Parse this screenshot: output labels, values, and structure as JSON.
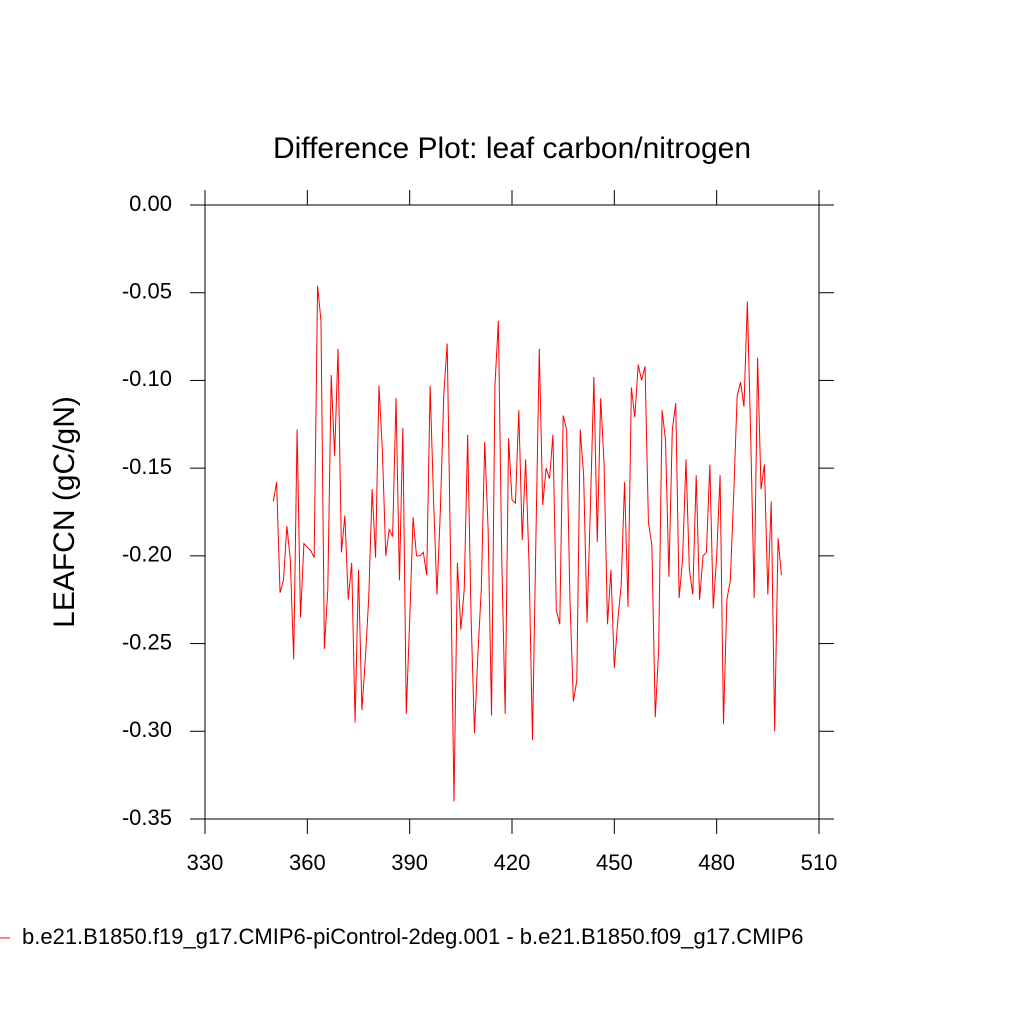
{
  "chart_data": {
    "type": "line",
    "title": "Difference Plot: leaf carbon/nitrogen",
    "y_label": "LEAFCN  (gC/gN)",
    "x": [
      350,
      351,
      352,
      353,
      354,
      355,
      356,
      357,
      358,
      359,
      360,
      361,
      362,
      363,
      364,
      365,
      366,
      367,
      368,
      369,
      370,
      371,
      372,
      373,
      374,
      375,
      376,
      377,
      378,
      379,
      380,
      381,
      382,
      383,
      384,
      385,
      386,
      387,
      388,
      389,
      390,
      391,
      392,
      393,
      394,
      395,
      396,
      397,
      398,
      399,
      400,
      401,
      402,
      403,
      404,
      405,
      406,
      407,
      408,
      409,
      410,
      411,
      412,
      413,
      414,
      415,
      416,
      417,
      418,
      419,
      420,
      421,
      422,
      423,
      424,
      425,
      426,
      427,
      428,
      429,
      430,
      431,
      432,
      433,
      434,
      435,
      436,
      437,
      438,
      439,
      440,
      441,
      442,
      443,
      444,
      445,
      446,
      447,
      448,
      449,
      450,
      451,
      452,
      453,
      454,
      455,
      456,
      457,
      458,
      459,
      460,
      461,
      462,
      463,
      464,
      465,
      466,
      467,
      468,
      469,
      470,
      471,
      472,
      473,
      474,
      475,
      476,
      477,
      478,
      479,
      480,
      481,
      482,
      483,
      484,
      485,
      486,
      487,
      488,
      489,
      490,
      491,
      492,
      493,
      494,
      495,
      496,
      497,
      498,
      499
    ],
    "series": [
      {
        "name": "b.e21.B1850.f19_g17.CMIP6-piControl-2deg.001 - b.e21.B1850.f09_g17.CMIP6",
        "color": "#ff0000",
        "values": [
          -0.169,
          -0.158,
          -0.221,
          -0.214,
          -0.183,
          -0.202,
          -0.259,
          -0.128,
          -0.235,
          -0.193,
          -0.195,
          -0.197,
          -0.201,
          -0.046,
          -0.066,
          -0.253,
          -0.219,
          -0.097,
          -0.143,
          -0.082,
          -0.198,
          -0.177,
          -0.225,
          -0.204,
          -0.295,
          -0.208,
          -0.288,
          -0.259,
          -0.224,
          -0.162,
          -0.201,
          -0.103,
          -0.14,
          -0.2,
          -0.185,
          -0.189,
          -0.11,
          -0.214,
          -0.127,
          -0.29,
          -0.237,
          -0.178,
          -0.2,
          -0.2,
          -0.198,
          -0.211,
          -0.103,
          -0.168,
          -0.222,
          -0.174,
          -0.108,
          -0.079,
          -0.202,
          -0.34,
          -0.204,
          -0.242,
          -0.219,
          -0.131,
          -0.235,
          -0.301,
          -0.256,
          -0.219,
          -0.135,
          -0.185,
          -0.291,
          -0.103,
          -0.066,
          -0.202,
          -0.29,
          -0.133,
          -0.168,
          -0.17,
          -0.117,
          -0.191,
          -0.145,
          -0.205,
          -0.305,
          -0.191,
          -0.082,
          -0.171,
          -0.15,
          -0.156,
          -0.131,
          -0.231,
          -0.239,
          -0.12,
          -0.128,
          -0.226,
          -0.283,
          -0.271,
          -0.128,
          -0.154,
          -0.238,
          -0.171,
          -0.098,
          -0.192,
          -0.11,
          -0.148,
          -0.239,
          -0.208,
          -0.264,
          -0.237,
          -0.217,
          -0.158,
          -0.229,
          -0.104,
          -0.121,
          -0.091,
          -0.1,
          -0.092,
          -0.181,
          -0.194,
          -0.292,
          -0.253,
          -0.117,
          -0.134,
          -0.212,
          -0.128,
          -0.113,
          -0.224,
          -0.202,
          -0.145,
          -0.208,
          -0.222,
          -0.154,
          -0.225,
          -0.2,
          -0.198,
          -0.148,
          -0.23,
          -0.2,
          -0.154,
          -0.296,
          -0.225,
          -0.214,
          -0.165,
          -0.109,
          -0.101,
          -0.115,
          -0.055,
          -0.134,
          -0.224,
          -0.087,
          -0.162,
          -0.148,
          -0.222,
          -0.169,
          -0.3,
          -0.19,
          -0.211
        ]
      }
    ],
    "xlim": [
      330,
      510
    ],
    "xticks": [
      330,
      360,
      390,
      420,
      450,
      480,
      510
    ],
    "ylim": [
      -0.35,
      0
    ],
    "yticks": [
      {
        "value": 0,
        "label": "0.00"
      },
      {
        "value": -0.05,
        "label": "-0.05"
      },
      {
        "value": -0.1,
        "label": "-0.10"
      },
      {
        "value": -0.15,
        "label": "-0.15"
      },
      {
        "value": -0.2,
        "label": "-0.20"
      },
      {
        "value": -0.25,
        "label": "-0.25"
      },
      {
        "value": -0.3,
        "label": "-0.30"
      },
      {
        "value": -0.35,
        "label": "-0.35"
      }
    ]
  }
}
